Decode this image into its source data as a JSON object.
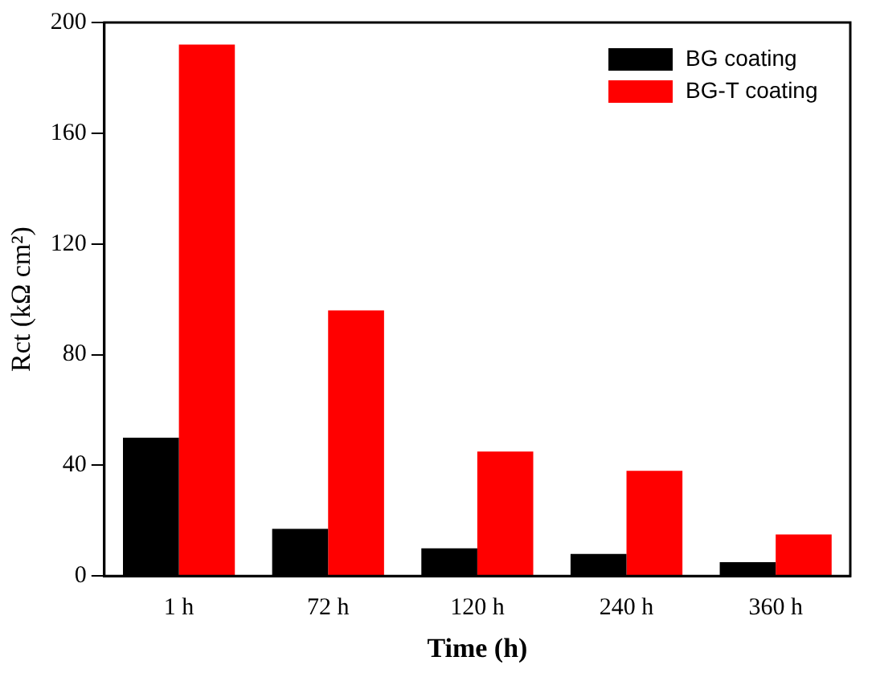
{
  "chart_data": {
    "type": "bar",
    "xlabel": "Time (h)",
    "ylabel": "Rct (kΩ cm²)",
    "categories": [
      "1 h",
      "72 h",
      "120 h",
      "240 h",
      "360 h"
    ],
    "series": [
      {
        "name": "BG coating",
        "color": "#000000",
        "values": [
          50,
          17,
          10,
          8,
          5
        ]
      },
      {
        "name": "BG-T coating",
        "color": "#ff0000",
        "values": [
          192,
          96,
          45,
          38,
          15
        ]
      }
    ],
    "ylim": [
      0,
      200
    ],
    "yticks": [
      0,
      40,
      80,
      120,
      160,
      200
    ],
    "grid": false,
    "legend": "top right"
  }
}
